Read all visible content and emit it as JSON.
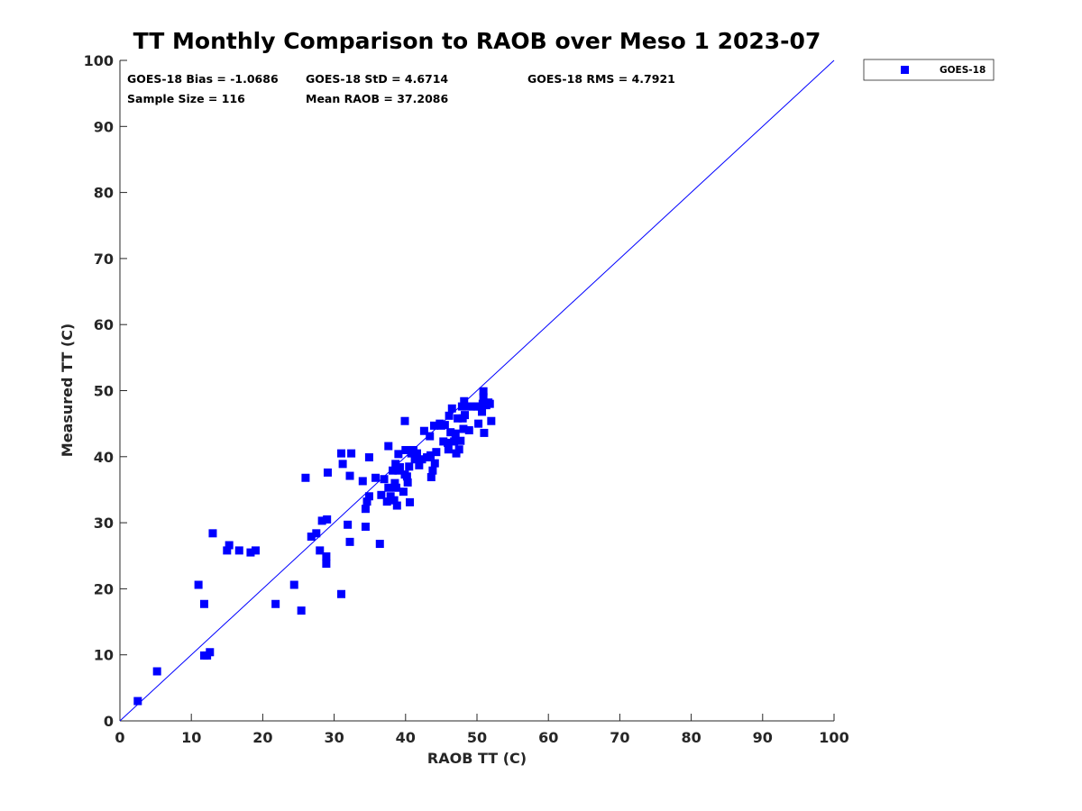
{
  "chart_data": {
    "type": "scatter",
    "title": "TT Monthly Comparison to RAOB over Meso 1 2023-07",
    "xlabel": "RAOB TT (C)",
    "ylabel": "Measured TT (C)",
    "xlim": [
      0,
      100
    ],
    "ylim": [
      0,
      100
    ],
    "xticks": [
      "0",
      "10",
      "20",
      "30",
      "40",
      "50",
      "60",
      "70",
      "80",
      "90",
      "100"
    ],
    "yticks": [
      "0",
      "10",
      "20",
      "30",
      "40",
      "50",
      "60",
      "70",
      "80",
      "90",
      "100"
    ],
    "grid": false,
    "legend_position": "outside-top-right",
    "reference_line": {
      "type": "one-to-one",
      "from": [
        0,
        0
      ],
      "to": [
        100,
        100
      ],
      "color": "#0000ff"
    },
    "stats": {
      "bias": "GOES-18 Bias = -1.0686",
      "std": "GOES-18 StD = 4.6714",
      "rms": "GOES-18 RMS = 4.7921",
      "sample_size": "Sample Size = 116",
      "mean_raob": "Mean RAOB = 37.2086"
    },
    "series": [
      {
        "name": "GOES-18",
        "color": "#0000ff",
        "marker": "square",
        "points": [
          [
            2.5,
            3.0
          ],
          [
            5.2,
            7.5
          ],
          [
            11.0,
            20.6
          ],
          [
            11.8,
            17.7
          ],
          [
            11.8,
            9.9
          ],
          [
            12.2,
            9.9
          ],
          [
            12.6,
            10.4
          ],
          [
            13.0,
            28.4
          ],
          [
            15.0,
            25.8
          ],
          [
            15.3,
            26.6
          ],
          [
            16.7,
            25.8
          ],
          [
            18.3,
            25.5
          ],
          [
            19.0,
            25.8
          ],
          [
            21.8,
            17.7
          ],
          [
            24.4,
            20.6
          ],
          [
            25.4,
            16.7
          ],
          [
            26.0,
            36.8
          ],
          [
            26.8,
            27.9
          ],
          [
            27.5,
            28.4
          ],
          [
            28.0,
            25.8
          ],
          [
            28.3,
            30.3
          ],
          [
            28.9,
            24.9
          ],
          [
            28.9,
            23.8
          ],
          [
            29.0,
            30.5
          ],
          [
            29.1,
            37.6
          ],
          [
            31.0,
            19.2
          ],
          [
            31.0,
            40.5
          ],
          [
            31.2,
            38.9
          ],
          [
            31.9,
            29.7
          ],
          [
            32.2,
            27.1
          ],
          [
            32.2,
            37.1
          ],
          [
            32.4,
            40.5
          ],
          [
            34.0,
            36.3
          ],
          [
            34.4,
            32.1
          ],
          [
            34.4,
            29.4
          ],
          [
            34.6,
            33.2
          ],
          [
            34.9,
            34.0
          ],
          [
            34.9,
            39.9
          ],
          [
            35.8,
            36.8
          ],
          [
            36.4,
            26.8
          ],
          [
            36.6,
            34.2
          ],
          [
            37.0,
            36.6
          ],
          [
            37.4,
            33.2
          ],
          [
            37.6,
            41.6
          ],
          [
            37.6,
            35.3
          ],
          [
            37.9,
            34.0
          ],
          [
            38.2,
            37.9
          ],
          [
            38.4,
            33.4
          ],
          [
            38.5,
            36.0
          ],
          [
            38.6,
            38.9
          ],
          [
            38.7,
            35.3
          ],
          [
            38.8,
            32.6
          ],
          [
            39.0,
            37.9
          ],
          [
            39.0,
            40.4
          ],
          [
            39.2,
            38.4
          ],
          [
            39.7,
            34.7
          ],
          [
            39.9,
            37.3
          ],
          [
            39.9,
            45.4
          ],
          [
            40.0,
            41.0
          ],
          [
            40.2,
            37.0
          ],
          [
            40.3,
            36.1
          ],
          [
            40.5,
            38.5
          ],
          [
            40.6,
            33.1
          ],
          [
            40.8,
            40.5
          ],
          [
            41.1,
            41.0
          ],
          [
            41.3,
            39.6
          ],
          [
            41.6,
            40.5
          ],
          [
            41.9,
            38.7
          ],
          [
            42.3,
            39.6
          ],
          [
            42.6,
            43.9
          ],
          [
            43.0,
            39.9
          ],
          [
            43.4,
            43.1
          ],
          [
            43.5,
            40.2
          ],
          [
            43.6,
            36.9
          ],
          [
            43.8,
            37.9
          ],
          [
            44.0,
            44.7
          ],
          [
            44.1,
            39.0
          ],
          [
            44.3,
            40.7
          ],
          [
            44.8,
            45.0
          ],
          [
            45.0,
            44.7
          ],
          [
            45.3,
            42.3
          ],
          [
            45.5,
            44.8
          ],
          [
            45.9,
            42.1
          ],
          [
            46.0,
            41.1
          ],
          [
            46.1,
            46.2
          ],
          [
            46.3,
            43.7
          ],
          [
            46.5,
            47.3
          ],
          [
            46.8,
            42.3
          ],
          [
            47.0,
            43.5
          ],
          [
            47.1,
            40.5
          ],
          [
            47.3,
            45.8
          ],
          [
            47.5,
            41.1
          ],
          [
            47.7,
            42.4
          ],
          [
            47.9,
            47.6
          ],
          [
            48.0,
            45.8
          ],
          [
            48.1,
            44.2
          ],
          [
            48.2,
            48.4
          ],
          [
            48.3,
            46.3
          ],
          [
            48.5,
            47.6
          ],
          [
            48.9,
            44.0
          ],
          [
            49.2,
            47.6
          ],
          [
            49.6,
            47.6
          ],
          [
            50.0,
            47.6
          ],
          [
            50.2,
            45.0
          ],
          [
            50.5,
            47.6
          ],
          [
            50.7,
            46.8
          ],
          [
            50.8,
            48.0
          ],
          [
            50.9,
            49.9
          ],
          [
            50.9,
            49.0
          ],
          [
            51.0,
            43.6
          ],
          [
            51.3,
            47.8
          ],
          [
            51.6,
            48.2
          ],
          [
            51.8,
            48.0
          ],
          [
            52.0,
            45.4
          ]
        ]
      }
    ]
  }
}
